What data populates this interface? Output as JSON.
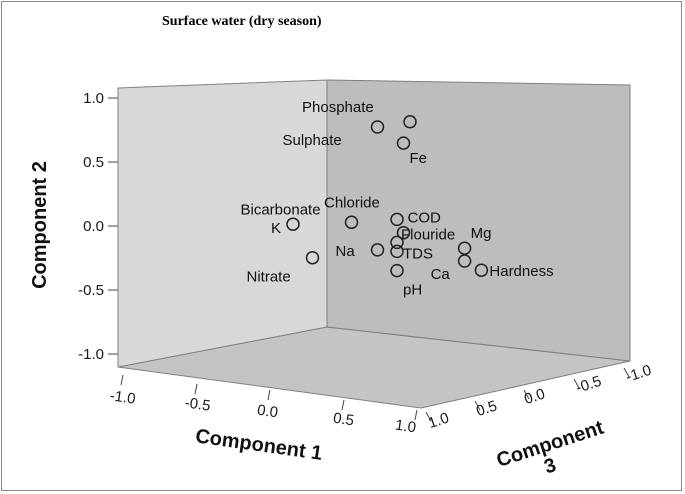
{
  "chart_data": {
    "type": "scatter",
    "title": "Surface water (dry season)",
    "axes": {
      "x": {
        "label": "Component 1",
        "ticks": [
          "-1.0",
          "-0.5",
          "0.0",
          "0.5",
          "1.0"
        ],
        "range": [
          -1,
          1
        ]
      },
      "y": {
        "label": "Component 2",
        "ticks": [
          "-1.0",
          "-0.5",
          "0.0",
          "0.5",
          "1.0"
        ],
        "range": [
          -1,
          1
        ]
      },
      "z": {
        "label_line1": "Component",
        "label_line2": "3",
        "ticks": [
          "1.0",
          "0.5",
          "0.0",
          "-0.5",
          "-1.0"
        ],
        "range": [
          -1,
          1
        ]
      }
    },
    "points": [
      {
        "label": "Phosphate",
        "pc1": 0.8,
        "pc2": 0.92,
        "pc3": 0.2
      },
      {
        "label": "Sulphate",
        "pc1": 0.55,
        "pc2": 0.86,
        "pc3": 0.2
      },
      {
        "label": "Fe",
        "pc1": 0.75,
        "pc2": 0.75,
        "pc3": 0.2
      },
      {
        "label": "Chloride",
        "pc1": 0.7,
        "pc2": 0.15,
        "pc3": 0.2
      },
      {
        "label": "COD",
        "pc1": 0.75,
        "pc2": 0.05,
        "pc3": 0.2
      },
      {
        "label": "Bicarbonate",
        "pc1": 0.35,
        "pc2": 0.1,
        "pc3": 0.2
      },
      {
        "label": "Flouride",
        "pc1": 0.7,
        "pc2": -0.03,
        "pc3": 0.2
      },
      {
        "label": "Mg",
        "pc1": 0.92,
        "pc2": -0.2,
        "pc3": -0.45
      },
      {
        "label": "Na",
        "pc1": 0.55,
        "pc2": -0.1,
        "pc3": 0.2
      },
      {
        "label": "TDS",
        "pc1": 0.7,
        "pc2": -0.1,
        "pc3": 0.2
      },
      {
        "label": "K",
        "pc1": -0.1,
        "pc2": 0.05,
        "pc3": 0.2
      },
      {
        "label": "Ca",
        "pc1": 0.92,
        "pc2": -0.3,
        "pc3": -0.45
      },
      {
        "label": "Hardness",
        "pc1": 0.98,
        "pc2": -0.4,
        "pc3": -0.6
      },
      {
        "label": "Nitrate",
        "pc1": 0.05,
        "pc2": -0.2,
        "pc3": 0.2
      },
      {
        "label": "pH",
        "pc1": 0.7,
        "pc2": -0.25,
        "pc3": 0.2
      }
    ]
  }
}
